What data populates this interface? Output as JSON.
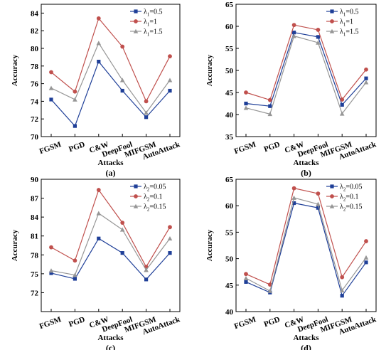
{
  "chart_data": [
    {
      "type": "line",
      "panel_label": "(a)",
      "categories": [
        "FGSM",
        "PGD",
        "C&W",
        "DeepFool",
        "MIFGSM",
        "AutoAttack"
      ],
      "xlabel": "Attacks",
      "ylabel": "Accuracy",
      "ylim": [
        70,
        85
      ],
      "yticks": [
        "70",
        "72",
        "74",
        "76",
        "78",
        "80",
        "82",
        "84"
      ],
      "legend_position": "top-right",
      "series": [
        {
          "name": "λ1=0.5",
          "legend_var": "λ",
          "legend_sub": "1",
          "legend_val": "=0.5",
          "color": "#1f3f98",
          "marker": "square",
          "values": [
            74.2,
            71.2,
            78.5,
            75.2,
            72.2,
            75.2
          ]
        },
        {
          "name": "λ1=1",
          "legend_var": "λ",
          "legend_sub": "1",
          "legend_val": "=1",
          "color": "#c0504d",
          "marker": "circle",
          "values": [
            77.3,
            75.1,
            83.4,
            80.2,
            74.0,
            79.1
          ]
        },
        {
          "name": "λ1=1.5",
          "legend_var": "λ",
          "legend_sub": "1",
          "legend_val": "=1.5",
          "color": "#969696",
          "marker": "triangle",
          "values": [
            75.5,
            74.2,
            80.6,
            76.4,
            72.7,
            76.4
          ]
        }
      ]
    },
    {
      "type": "line",
      "panel_label": "(b)",
      "categories": [
        "FGSM",
        "PGD",
        "C&W",
        "DeepFool",
        "MIFGSM",
        "AutoAttack"
      ],
      "xlabel": "Attacks",
      "ylabel": "Accuracy",
      "ylim": [
        35,
        65
      ],
      "yticks": [
        "35",
        "40",
        "45",
        "50",
        "55",
        "60",
        "65"
      ],
      "legend_position": "top-right",
      "series": [
        {
          "name": "λ1=0.5",
          "legend_var": "λ",
          "legend_sub": "1",
          "legend_val": "=0.5",
          "color": "#1f3f98",
          "marker": "square",
          "values": [
            42.5,
            41.9,
            58.6,
            57.6,
            42.2,
            48.2
          ]
        },
        {
          "name": "λ1=1",
          "legend_var": "λ",
          "legend_sub": "1",
          "legend_val": "=1",
          "color": "#c0504d",
          "marker": "circle",
          "values": [
            45.0,
            43.3,
            60.3,
            59.2,
            43.4,
            50.2
          ]
        },
        {
          "name": "λ1=1.5",
          "legend_var": "λ",
          "legend_sub": "1",
          "legend_val": "=1.5",
          "color": "#969696",
          "marker": "triangle",
          "values": [
            41.5,
            40.1,
            57.8,
            56.3,
            40.2,
            47.3
          ]
        }
      ]
    },
    {
      "type": "line",
      "panel_label": "(c)",
      "categories": [
        "FGSM",
        "PGD",
        "C&W",
        "DeepFool",
        "MIFGSM",
        "AutoAttack"
      ],
      "xlabel": "Attacks",
      "ylabel": "Accuracy",
      "ylim": [
        69,
        90
      ],
      "yticks": [
        "72",
        "75",
        "78",
        "81",
        "84",
        "87",
        "90"
      ],
      "legend_position": "top-right",
      "series": [
        {
          "name": "λ2=0.05",
          "legend_var": "λ",
          "legend_sub": "2",
          "legend_val": "=0.05",
          "color": "#1f3f98",
          "marker": "square",
          "values": [
            75.1,
            74.2,
            80.6,
            78.3,
            74.1,
            78.3
          ]
        },
        {
          "name": "λ2=0.1",
          "legend_var": "λ",
          "legend_sub": "2",
          "legend_val": "=0.1",
          "color": "#c0504d",
          "marker": "circle",
          "values": [
            79.2,
            77.1,
            88.3,
            83.1,
            76.1,
            82.4
          ]
        },
        {
          "name": "λ2=0.15",
          "legend_var": "λ",
          "legend_sub": "2",
          "legend_val": "=0.15",
          "color": "#969696",
          "marker": "triangle",
          "values": [
            75.5,
            74.8,
            84.6,
            82.0,
            75.6,
            80.6
          ]
        }
      ]
    },
    {
      "type": "line",
      "panel_label": "(d)",
      "categories": [
        "FGSM",
        "PGD",
        "C&W",
        "DeepFool",
        "MIFGSM",
        "AutoAttack"
      ],
      "xlabel": "Attacks",
      "ylabel": "Accuracy",
      "ylim": [
        40,
        65
      ],
      "yticks": [
        "40",
        "45",
        "50",
        "55",
        "60",
        "65"
      ],
      "legend_position": "top-right",
      "series": [
        {
          "name": "λ2=0.05",
          "legend_var": "λ",
          "legend_sub": "2",
          "legend_val": "=0.05",
          "color": "#1f3f98",
          "marker": "square",
          "values": [
            45.6,
            43.6,
            60.5,
            59.6,
            43.0,
            49.3
          ]
        },
        {
          "name": "λ2=0.1",
          "legend_var": "λ",
          "legend_sub": "2",
          "legend_val": "=0.1",
          "color": "#c0504d",
          "marker": "circle",
          "values": [
            47.1,
            45.1,
            63.3,
            62.3,
            46.5,
            53.3
          ]
        },
        {
          "name": "λ2=0.15",
          "legend_var": "λ",
          "legend_sub": "2",
          "legend_val": "=0.15",
          "color": "#969696",
          "marker": "triangle",
          "values": [
            46.3,
            43.9,
            61.5,
            60.3,
            44.0,
            50.2
          ]
        }
      ]
    }
  ]
}
